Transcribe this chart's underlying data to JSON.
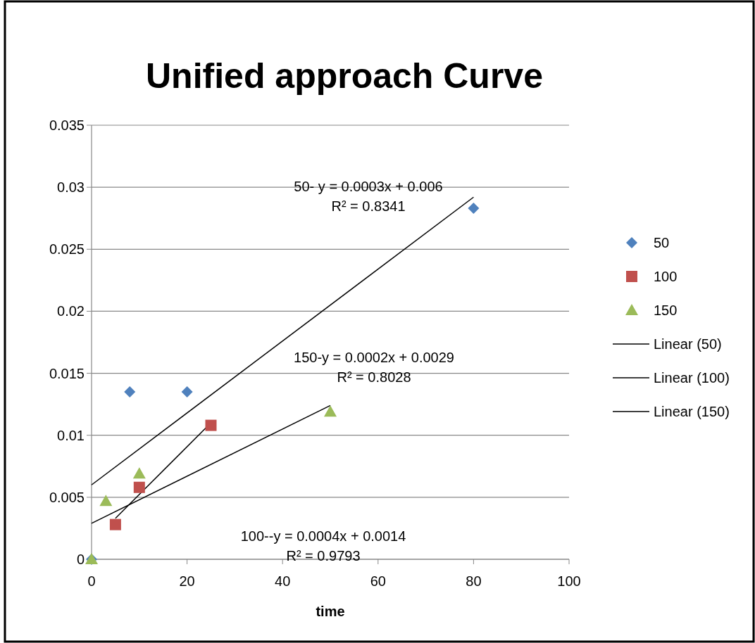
{
  "chart_data": {
    "type": "scatter",
    "title": "Unified approach Curve",
    "xlabel": "time",
    "xlim": [
      0,
      100
    ],
    "xticks": [
      0,
      20,
      40,
      60,
      80,
      100
    ],
    "ylim": [
      0,
      0.035
    ],
    "yticks": [
      0,
      0.005,
      0.01,
      0.015,
      0.02,
      0.025,
      0.03,
      0.035
    ],
    "grid": "y",
    "legend": "right",
    "series": [
      {
        "name": "50",
        "marker": "diamond",
        "color": "#4f81bd",
        "x": [
          0,
          8,
          20,
          80
        ],
        "values": [
          0,
          0.0135,
          0.0135,
          0.0283
        ]
      },
      {
        "name": "100",
        "marker": "square",
        "color": "#c0504d",
        "x": [
          5,
          10,
          25
        ],
        "values": [
          0.0028,
          0.0058,
          0.0108
        ]
      },
      {
        "name": "150",
        "marker": "triangle",
        "color": "#9bbb59",
        "x": [
          0,
          3,
          10,
          50
        ],
        "values": [
          0,
          0.0047,
          0.0069,
          0.0119
        ]
      },
      {
        "name": "Linear (50)",
        "type": "line",
        "marker": "none",
        "color": "#000000",
        "x": [
          0,
          80
        ],
        "values": [
          0.006,
          0.0292
        ]
      },
      {
        "name": "Linear (100)",
        "type": "line",
        "marker": "none",
        "color": "#000000",
        "x": [
          5,
          25
        ],
        "values": [
          0.0033,
          0.011
        ]
      },
      {
        "name": "Linear (150)",
        "type": "line",
        "marker": "none",
        "color": "#000000",
        "x": [
          0,
          50
        ],
        "values": [
          0.0029,
          0.0124
        ]
      }
    ],
    "annotations": [
      "50- y = 0.0003x + 0.006\nR² = 0.8341",
      "150-y = 0.0002x + 0.0029\nR² = 0.8028",
      "100--y = 0.0004x + 0.0014\nR² = 0.9793"
    ]
  }
}
